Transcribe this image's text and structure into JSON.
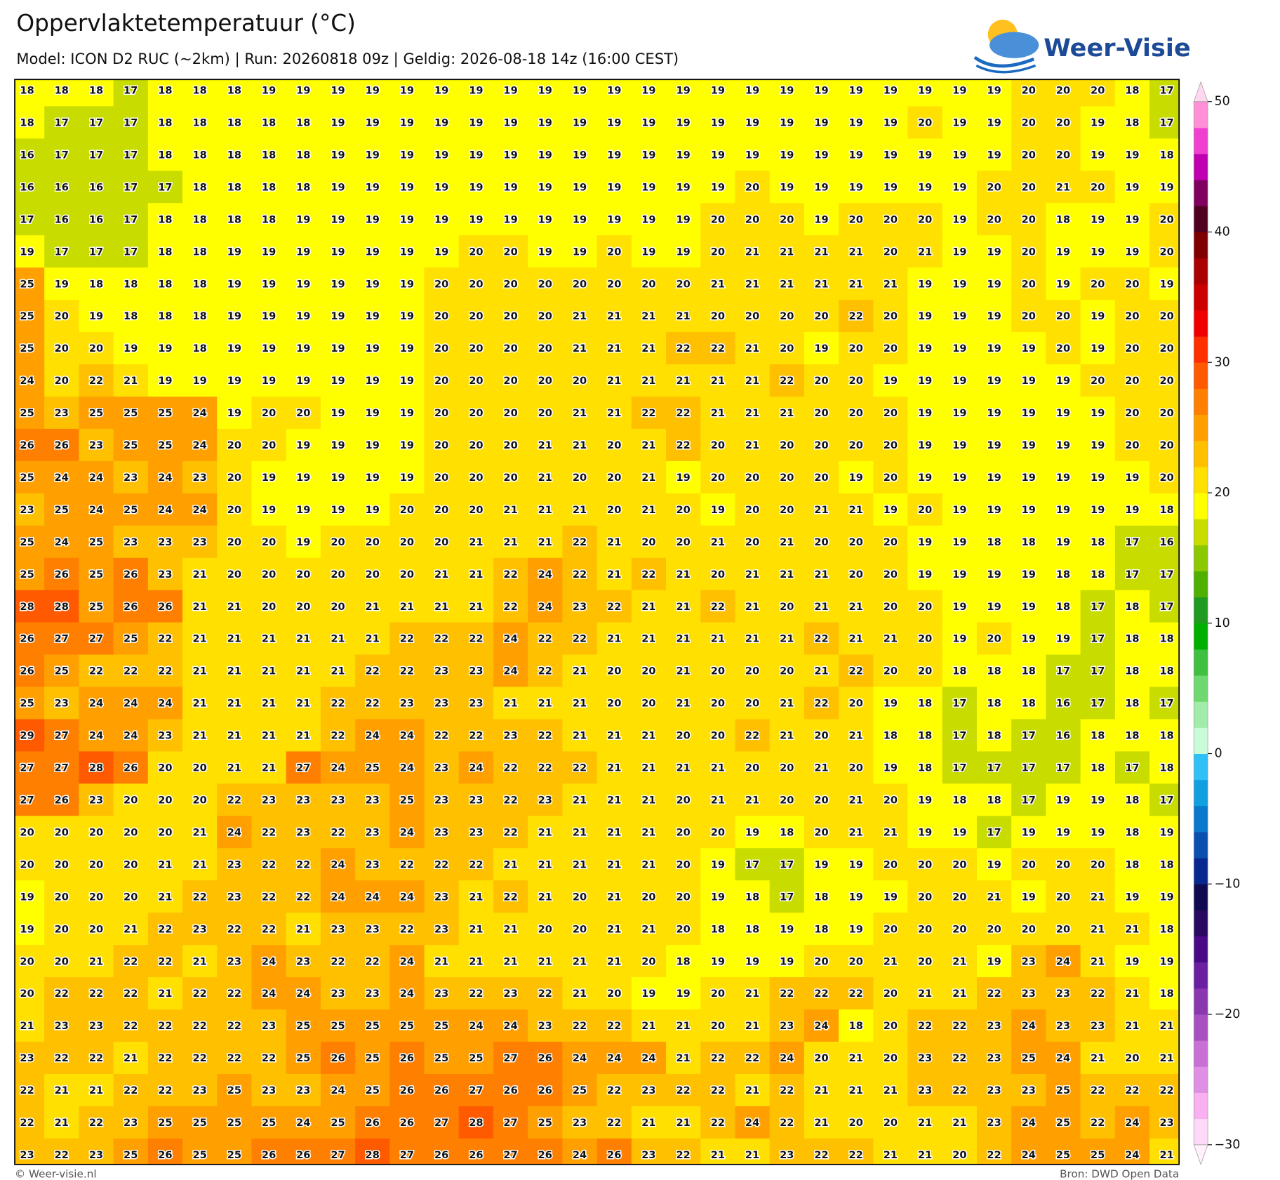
{
  "chart_data": {
    "type": "heatmap",
    "title": "Oppervlaktetemperatuur (°C)",
    "subtitle": "Model: ICON D2 RUC (~2km)  |  Run: 20260818 09z  |  Geldig: 2026-08-18 14z (16:00 CEST)",
    "values": [
      [
        18,
        18,
        18,
        17,
        18,
        18,
        18,
        19,
        19,
        19,
        19,
        19,
        19,
        19,
        19,
        19,
        19,
        19,
        19,
        19,
        19,
        19,
        19,
        19,
        19,
        19,
        19,
        19,
        19,
        20,
        20,
        20,
        18,
        17
      ],
      [
        18,
        17,
        17,
        17,
        18,
        18,
        18,
        18,
        18,
        19,
        19,
        19,
        19,
        19,
        19,
        19,
        19,
        19,
        19,
        19,
        19,
        19,
        19,
        19,
        19,
        19,
        20,
        19,
        19,
        20,
        20,
        19,
        18,
        17
      ],
      [
        16,
        17,
        17,
        17,
        18,
        18,
        18,
        18,
        18,
        19,
        19,
        19,
        19,
        19,
        19,
        19,
        19,
        19,
        19,
        19,
        19,
        19,
        19,
        19,
        19,
        19,
        19,
        19,
        19,
        20,
        20,
        19,
        19,
        18
      ],
      [
        16,
        16,
        16,
        17,
        17,
        18,
        18,
        18,
        18,
        19,
        19,
        19,
        19,
        19,
        19,
        19,
        19,
        19,
        19,
        19,
        19,
        20,
        19,
        19,
        19,
        19,
        19,
        19,
        20,
        20,
        21,
        20,
        19,
        19
      ],
      [
        17,
        16,
        16,
        17,
        18,
        18,
        18,
        18,
        19,
        19,
        19,
        19,
        19,
        19,
        19,
        19,
        19,
        19,
        19,
        19,
        20,
        20,
        20,
        19,
        20,
        20,
        20,
        19,
        20,
        20,
        18,
        19,
        19,
        20
      ],
      [
        19,
        17,
        17,
        17,
        18,
        18,
        19,
        19,
        19,
        19,
        19,
        19,
        19,
        20,
        20,
        19,
        19,
        20,
        19,
        19,
        20,
        21,
        21,
        21,
        21,
        20,
        21,
        19,
        19,
        20,
        19,
        19,
        19,
        20
      ],
      [
        25,
        19,
        18,
        18,
        18,
        18,
        19,
        19,
        19,
        19,
        19,
        19,
        20,
        20,
        20,
        20,
        20,
        20,
        20,
        20,
        21,
        21,
        21,
        21,
        21,
        21,
        19,
        19,
        19,
        20,
        19,
        20,
        20,
        19
      ],
      [
        25,
        20,
        19,
        18,
        18,
        18,
        19,
        19,
        19,
        19,
        19,
        19,
        20,
        20,
        20,
        20,
        21,
        21,
        21,
        21,
        20,
        20,
        20,
        20,
        22,
        20,
        19,
        19,
        19,
        20,
        20,
        19,
        20,
        20
      ],
      [
        25,
        20,
        20,
        19,
        19,
        18,
        19,
        19,
        19,
        19,
        19,
        19,
        20,
        20,
        20,
        20,
        21,
        21,
        21,
        22,
        22,
        21,
        20,
        19,
        20,
        20,
        19,
        19,
        19,
        19,
        20,
        19,
        20,
        20
      ],
      [
        24,
        20,
        22,
        21,
        19,
        19,
        19,
        19,
        19,
        19,
        19,
        19,
        20,
        20,
        20,
        20,
        20,
        21,
        21,
        21,
        21,
        21,
        22,
        20,
        20,
        19,
        19,
        19,
        19,
        19,
        19,
        20,
        20,
        20
      ],
      [
        25,
        23,
        25,
        25,
        25,
        24,
        19,
        20,
        20,
        19,
        19,
        19,
        20,
        20,
        20,
        20,
        21,
        21,
        22,
        22,
        21,
        21,
        21,
        20,
        20,
        20,
        19,
        19,
        19,
        19,
        19,
        19,
        20,
        20
      ],
      [
        26,
        26,
        23,
        25,
        25,
        24,
        20,
        20,
        19,
        19,
        19,
        19,
        20,
        20,
        20,
        21,
        21,
        20,
        21,
        22,
        20,
        21,
        20,
        20,
        20,
        20,
        19,
        19,
        19,
        19,
        19,
        19,
        20,
        20
      ],
      [
        25,
        24,
        24,
        23,
        24,
        23,
        20,
        19,
        19,
        19,
        19,
        19,
        20,
        20,
        20,
        21,
        20,
        20,
        21,
        19,
        20,
        20,
        20,
        20,
        19,
        20,
        19,
        19,
        19,
        19,
        19,
        19,
        19,
        20
      ],
      [
        23,
        25,
        24,
        25,
        24,
        24,
        20,
        19,
        19,
        19,
        19,
        20,
        20,
        20,
        21,
        21,
        21,
        20,
        21,
        20,
        19,
        20,
        20,
        21,
        21,
        19,
        20,
        19,
        19,
        19,
        19,
        19,
        19,
        18
      ],
      [
        25,
        24,
        25,
        23,
        23,
        23,
        20,
        20,
        19,
        20,
        20,
        20,
        20,
        21,
        21,
        21,
        22,
        21,
        20,
        20,
        21,
        20,
        21,
        20,
        20,
        20,
        19,
        19,
        18,
        18,
        19,
        18,
        17,
        16
      ],
      [
        25,
        26,
        25,
        26,
        23,
        21,
        20,
        20,
        20,
        20,
        20,
        20,
        21,
        21,
        22,
        24,
        22,
        21,
        22,
        21,
        20,
        21,
        21,
        21,
        20,
        20,
        19,
        19,
        19,
        19,
        18,
        18,
        17,
        17
      ],
      [
        28,
        28,
        25,
        26,
        26,
        21,
        21,
        20,
        20,
        20,
        21,
        21,
        21,
        21,
        22,
        24,
        23,
        22,
        21,
        21,
        22,
        21,
        20,
        21,
        21,
        20,
        20,
        19,
        19,
        19,
        18,
        17,
        18,
        17
      ],
      [
        26,
        27,
        27,
        25,
        22,
        21,
        21,
        21,
        21,
        21,
        21,
        22,
        22,
        22,
        24,
        22,
        22,
        21,
        21,
        21,
        21,
        21,
        21,
        22,
        21,
        21,
        20,
        19,
        20,
        19,
        19,
        17,
        18,
        18
      ],
      [
        26,
        25,
        22,
        22,
        22,
        21,
        21,
        21,
        21,
        21,
        22,
        22,
        23,
        23,
        24,
        22,
        21,
        20,
        20,
        21,
        20,
        20,
        20,
        21,
        22,
        20,
        20,
        18,
        18,
        18,
        17,
        17,
        18,
        18
      ],
      [
        25,
        23,
        24,
        24,
        24,
        21,
        21,
        21,
        21,
        22,
        22,
        23,
        23,
        23,
        21,
        21,
        21,
        20,
        20,
        21,
        20,
        20,
        21,
        22,
        20,
        19,
        18,
        17,
        18,
        18,
        16,
        17,
        18,
        17
      ],
      [
        29,
        27,
        24,
        24,
        23,
        21,
        21,
        21,
        21,
        22,
        24,
        24,
        22,
        22,
        23,
        22,
        21,
        21,
        21,
        20,
        20,
        22,
        21,
        20,
        21,
        18,
        18,
        17,
        18,
        17,
        16,
        18,
        18,
        18
      ],
      [
        27,
        27,
        28,
        26,
        20,
        20,
        21,
        21,
        27,
        24,
        25,
        24,
        23,
        24,
        22,
        22,
        22,
        21,
        21,
        21,
        21,
        20,
        20,
        21,
        20,
        19,
        18,
        17,
        17,
        17,
        17,
        18,
        17,
        18
      ],
      [
        27,
        26,
        23,
        20,
        20,
        20,
        22,
        23,
        23,
        23,
        23,
        25,
        23,
        23,
        22,
        23,
        21,
        21,
        21,
        20,
        21,
        21,
        20,
        20,
        21,
        20,
        19,
        18,
        18,
        17,
        19,
        19,
        18,
        17
      ],
      [
        20,
        20,
        20,
        20,
        20,
        21,
        24,
        22,
        23,
        22,
        23,
        24,
        23,
        23,
        22,
        21,
        21,
        21,
        21,
        20,
        20,
        19,
        18,
        20,
        21,
        21,
        19,
        19,
        17,
        19,
        19,
        19,
        18,
        19
      ],
      [
        20,
        20,
        20,
        20,
        21,
        21,
        23,
        22,
        22,
        24,
        23,
        22,
        22,
        22,
        21,
        21,
        21,
        21,
        21,
        20,
        19,
        17,
        17,
        19,
        19,
        20,
        20,
        20,
        19,
        20,
        20,
        20,
        18,
        18
      ],
      [
        19,
        20,
        20,
        20,
        21,
        22,
        23,
        22,
        22,
        24,
        24,
        24,
        23,
        21,
        22,
        21,
        20,
        21,
        20,
        20,
        19,
        18,
        17,
        18,
        19,
        19,
        20,
        20,
        21,
        19,
        20,
        21,
        19,
        19
      ],
      [
        19,
        20,
        20,
        21,
        22,
        23,
        22,
        22,
        21,
        23,
        23,
        22,
        23,
        21,
        21,
        20,
        20,
        21,
        21,
        20,
        18,
        18,
        19,
        18,
        19,
        20,
        20,
        20,
        20,
        20,
        20,
        21,
        21,
        18
      ],
      [
        20,
        20,
        21,
        22,
        22,
        21,
        23,
        24,
        23,
        22,
        22,
        24,
        21,
        21,
        21,
        21,
        21,
        21,
        20,
        18,
        19,
        19,
        19,
        20,
        20,
        21,
        20,
        21,
        19,
        23,
        24,
        21,
        19,
        19
      ],
      [
        20,
        22,
        22,
        22,
        21,
        22,
        22,
        24,
        24,
        23,
        23,
        24,
        23,
        22,
        23,
        22,
        21,
        20,
        19,
        19,
        20,
        21,
        22,
        22,
        22,
        20,
        21,
        21,
        22,
        23,
        23,
        22,
        21,
        18
      ],
      [
        21,
        23,
        23,
        22,
        22,
        22,
        22,
        23,
        25,
        25,
        25,
        25,
        25,
        24,
        24,
        23,
        22,
        22,
        21,
        21,
        20,
        21,
        23,
        24,
        18,
        20,
        22,
        22,
        23,
        24,
        23,
        23,
        21,
        21
      ],
      [
        23,
        22,
        22,
        21,
        22,
        22,
        22,
        22,
        25,
        26,
        25,
        26,
        25,
        25,
        27,
        26,
        24,
        24,
        24,
        21,
        22,
        22,
        24,
        20,
        21,
        20,
        23,
        22,
        23,
        25,
        24,
        21,
        20,
        21
      ],
      [
        22,
        21,
        21,
        22,
        22,
        23,
        25,
        23,
        23,
        24,
        25,
        26,
        26,
        27,
        26,
        26,
        25,
        22,
        23,
        22,
        22,
        21,
        22,
        21,
        21,
        21,
        23,
        22,
        23,
        23,
        25,
        22,
        22,
        22
      ],
      [
        22,
        21,
        22,
        23,
        25,
        25,
        25,
        25,
        24,
        25,
        26,
        26,
        27,
        28,
        27,
        25,
        23,
        22,
        21,
        21,
        22,
        24,
        22,
        21,
        20,
        20,
        21,
        21,
        23,
        24,
        25,
        22,
        24,
        23
      ],
      [
        23,
        22,
        23,
        25,
        26,
        25,
        25,
        26,
        26,
        27,
        28,
        27,
        26,
        26,
        27,
        26,
        24,
        26,
        23,
        22,
        21,
        21,
        23,
        22,
        22,
        21,
        21,
        20,
        22,
        24,
        25,
        25,
        24,
        21
      ]
    ],
    "colorbar": {
      "lim": [
        -30,
        50
      ],
      "ticks": [
        50,
        40,
        30,
        20,
        10,
        0,
        {
          "value": -10,
          "label": "−10"
        },
        {
          "value": -20,
          "label": "−20"
        },
        {
          "value": -30,
          "label": "−30"
        }
      ],
      "colors": [
        "#fdd8f8",
        "#f8b0f0",
        "#e090e4",
        "#c870d4",
        "#a850c0",
        "#8a38b0",
        "#6a20a0",
        "#4a0a88",
        "#2a0a60",
        "#100a50",
        "#082890",
        "#0a50b0",
        "#0a78cc",
        "#10a0e0",
        "#30c0f8",
        "#c8fcd8",
        "#a0eca8",
        "#70d870",
        "#40c040",
        "#00b000",
        "#209a20",
        "#50b000",
        "#8cc800",
        "#c8dc00",
        "#ffff00",
        "#ffe000",
        "#ffc000",
        "#ffa000",
        "#ff8000",
        "#ff5a00",
        "#ff3000",
        "#f00000",
        "#cc0000",
        "#aa0000",
        "#800000",
        "#500020",
        "#800060",
        "#c000b0",
        "#f040d0",
        "#ff90d8"
      ],
      "under": "#fff0fc",
      "over": "#ffd8f0"
    }
  },
  "logo": "Weer-Visie",
  "footer": {
    "credit": "© Weer-visie.nl",
    "source": "Bron: DWD Open Data"
  }
}
